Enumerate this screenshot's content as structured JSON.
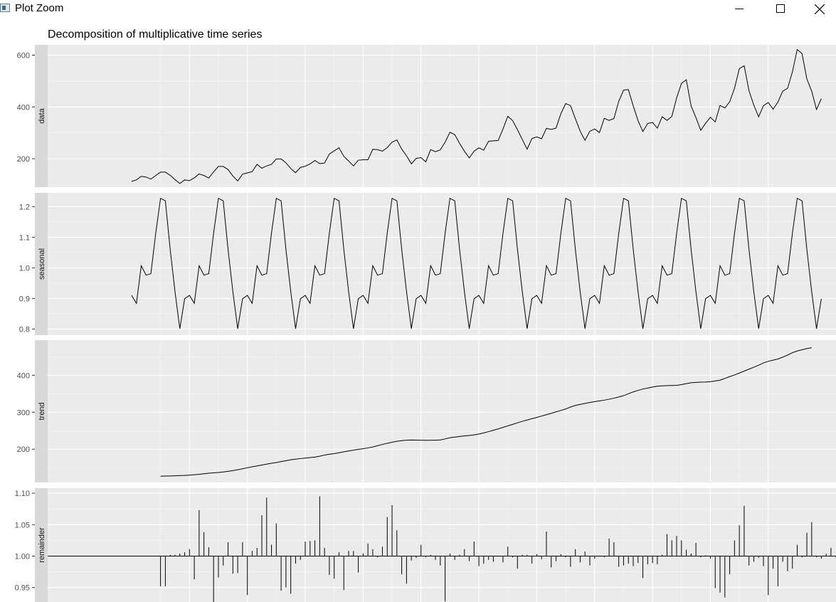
{
  "window": {
    "title": "Plot Zoom",
    "buttons": {
      "minimize": "minimize-icon",
      "maximize": "maximize-icon",
      "close": "close-icon"
    }
  },
  "chart_data": {
    "type": "line",
    "title": "Decomposition of multiplicative time series",
    "x_start": 1949,
    "x_frequency": 12,
    "x_tick_labels": [],
    "grid": true,
    "panels": [
      {
        "name": "data",
        "kind": "line",
        "ylim": [
          90,
          640
        ],
        "ticks": [
          200,
          400,
          600
        ],
        "tick_labels": [
          "200",
          "400",
          "600"
        ],
        "values": [
          112,
          118,
          132,
          129,
          121,
          135,
          148,
          148,
          136,
          119,
          104,
          118,
          115,
          126,
          141,
          135,
          125,
          149,
          170,
          170,
          158,
          133,
          114,
          140,
          145,
          150,
          178,
          163,
          172,
          178,
          199,
          199,
          184,
          162,
          146,
          166,
          171,
          180,
          193,
          181,
          183,
          218,
          230,
          242,
          209,
          191,
          172,
          194,
          196,
          196,
          236,
          235,
          229,
          243,
          264,
          272,
          237,
          211,
          180,
          201,
          204,
          188,
          235,
          227,
          234,
          264,
          302,
          293,
          259,
          229,
          203,
          229,
          242,
          233,
          267,
          269,
          270,
          315,
          364,
          347,
          312,
          274,
          237,
          278,
          284,
          277,
          317,
          313,
          318,
          374,
          413,
          405,
          355,
          306,
          271,
          306,
          315,
          301,
          356,
          348,
          355,
          422,
          465,
          467,
          404,
          347,
          305,
          336,
          340,
          318,
          362,
          348,
          363,
          435,
          491,
          505,
          404,
          359,
          310,
          337,
          360,
          342,
          406,
          396,
          420,
          472,
          548,
          559,
          463,
          407,
          362,
          405,
          417,
          391,
          419,
          461,
          472,
          535,
          622,
          606,
          508,
          461,
          390,
          432
        ]
      },
      {
        "name": "seasonal",
        "kind": "line",
        "ylim": [
          0.78,
          1.245
        ],
        "ticks": [
          0.8,
          0.9,
          1.0,
          1.1,
          1.2
        ],
        "tick_labels": [
          "0.8",
          "0.9",
          "1.0",
          "1.1",
          "1.2"
        ],
        "pattern": [
          0.91,
          0.884,
          1.007,
          0.976,
          0.981,
          1.113,
          1.227,
          1.219,
          1.06,
          0.922,
          0.801,
          0.899
        ]
      },
      {
        "name": "trend",
        "kind": "line",
        "ylim": [
          110,
          495
        ],
        "ticks": [
          200,
          300,
          400
        ],
        "tick_labels": [
          "200",
          "300",
          "400"
        ],
        "offset": 6,
        "values": [
          126.8,
          127.3,
          127.6,
          128.0,
          128.6,
          129.0,
          129.8,
          130.9,
          132.0,
          133.6,
          135.0,
          136.0,
          137.0,
          138.4,
          140.0,
          142.0,
          144.5,
          147.0,
          149.8,
          152.4,
          154.8,
          157.1,
          159.5,
          161.9,
          164.0,
          166.5,
          168.8,
          171.3,
          173.0,
          174.6,
          176.0,
          177.3,
          178.5,
          181.0,
          184.2,
          186.2,
          188.0,
          190.4,
          192.8,
          195.2,
          197.3,
          199.5,
          201.2,
          203.5,
          206.0,
          209.3,
          212.9,
          215.9,
          218.8,
          221.3,
          223.0,
          224.2,
          224.7,
          224.5,
          224.3,
          224.1,
          224.2,
          224.3,
          225.0,
          227.8,
          231.0,
          232.8,
          234.3,
          235.8,
          237.0,
          238.7,
          241.0,
          244.0,
          247.5,
          251.0,
          254.8,
          258.9,
          263.0,
          267.2,
          271.3,
          275.4,
          279.0,
          282.5,
          285.9,
          289.6,
          293.4,
          297.0,
          301.0,
          304.8,
          308.7,
          314.0,
          318.3,
          321.1,
          323.9,
          326.3,
          328.7,
          330.6,
          332.7,
          335.1,
          338.0,
          341.2,
          344.8,
          350.0,
          355.0,
          359.2,
          362.8,
          365.3,
          368.2,
          370.3,
          371.3,
          372.0,
          372.3,
          372.7,
          374.6,
          377.3,
          379.8,
          380.8,
          381.3,
          381.7,
          382.6,
          384.6,
          386.8,
          391.4,
          396.3,
          400.8,
          406.0,
          411.3,
          416.6,
          421.8,
          427.2,
          433.3,
          437.6,
          440.8,
          444.0,
          449.0,
          454.6,
          461.1,
          465.7,
          469.0,
          472.1,
          474.5
        ]
      },
      {
        "name": "remainder",
        "kind": "bar",
        "baseline": 1.0,
        "ylim": [
          0.927,
          1.108
        ],
        "ticks": [
          0.95,
          1.0,
          1.05,
          1.1
        ],
        "tick_labels": [
          "0.95",
          "1.00",
          "1.05",
          "1.10"
        ],
        "offset": 6,
        "values": [
          0.952,
          0.952,
          1.002,
          1.002,
          1.004,
          1.006,
          1.011,
          0.963,
          1.073,
          1.038,
          1.014,
          0.925,
          0.966,
          0.985,
          1.022,
          0.972,
          0.973,
          1.022,
          0.938,
          1.008,
          1.013,
          1.065,
          1.093,
          1.018,
          1.052,
          0.945,
          0.95,
          0.94,
          0.988,
          0.994,
          1.023,
          1.024,
          1.025,
          1.095,
          1.013,
          0.97,
          0.964,
          1.006,
          0.946,
          1.008,
          1.008,
          0.974,
          1.004,
          1.02,
          1.011,
          0.998,
          1.015,
          1.062,
          1.081,
          1.041,
          0.971,
          0.956,
          0.993,
          0.997,
          1.018,
          0.998,
          1.002,
          0.994,
          0.985,
          0.928,
          1.004,
          0.994,
          1.002,
          1.011,
          0.992,
          1.023,
          0.984,
          0.988,
          0.994,
          0.991,
          0.999,
          0.99,
          1.015,
          0.998,
          0.98,
          1.002,
          1.002,
          0.988,
          1.003,
          0.995,
          1.039,
          0.982,
          0.992,
          1.003,
          0.998,
          0.983,
          1.011,
          0.99,
          1.007,
          0.985,
          0.996,
          0.999,
          0.998,
          1.028,
          1.022,
          0.983,
          0.985,
          0.988,
          0.984,
          0.989,
          0.965,
          0.987,
          0.989,
          0.987,
          1.002,
          1.035,
          1.025,
          1.032,
          1.025,
          1.01,
          1.004,
          1.021,
          0.998,
          1.001,
          0.996,
          0.949,
          0.942,
          0.934,
          0.971,
          1.025,
          1.049,
          1.08,
          0.985,
          0.991,
          0.997,
          0.984,
          0.938,
          0.98,
          0.952,
          0.991,
          0.976,
          0.98,
          1.018,
          0.998,
          1.037,
          1.054,
          0.998,
          0.996,
          1.004,
          1.013,
          0.998,
          0.999,
          1.003,
          0.956,
          0.928,
          1.007,
          1.017,
          1.012
        ]
      }
    ]
  }
}
